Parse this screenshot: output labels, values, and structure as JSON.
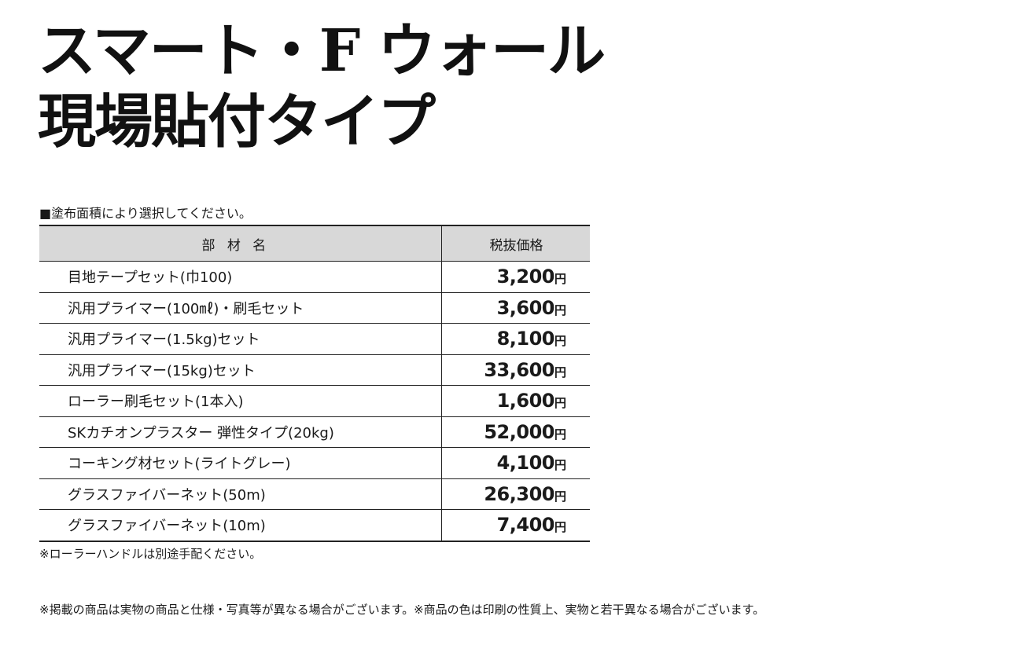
{
  "title": {
    "line1": "スマート・F ウォール",
    "line2": "現場貼付タイプ"
  },
  "instruction": "■塗布面積により選択してください。",
  "table": {
    "headers": [
      "部材名",
      "税抜価格"
    ],
    "currency": "円",
    "rows": [
      {
        "name": "目地テープセット(巾100)",
        "price": "3,200"
      },
      {
        "name": "汎用プライマー(100㎖)・刷毛セット",
        "price": "3,600"
      },
      {
        "name": "汎用プライマー(1.5kg)セット",
        "price": "8,100"
      },
      {
        "name": "汎用プライマー(15kg)セット",
        "price": "33,600"
      },
      {
        "name": "ローラー刷毛セット(1本入)",
        "price": "1,600"
      },
      {
        "name": "SKカチオンプラスター 弾性タイプ(20kg)",
        "price": "52,000"
      },
      {
        "name": "コーキング材セット(ライトグレー)",
        "price": "4,100"
      },
      {
        "name": "グラスファイバーネット(50m)",
        "price": "26,300"
      },
      {
        "name": "グラスファイバーネット(10m)",
        "price": "7,400"
      }
    ]
  },
  "table_note": "※ローラーハンドルは別途手配ください。",
  "disclaimer": "※掲載の商品は実物の商品と仕様・写真等が異なる場合がございます。※商品の色は印刷の性質上、実物と若干異なる場合がございます。"
}
